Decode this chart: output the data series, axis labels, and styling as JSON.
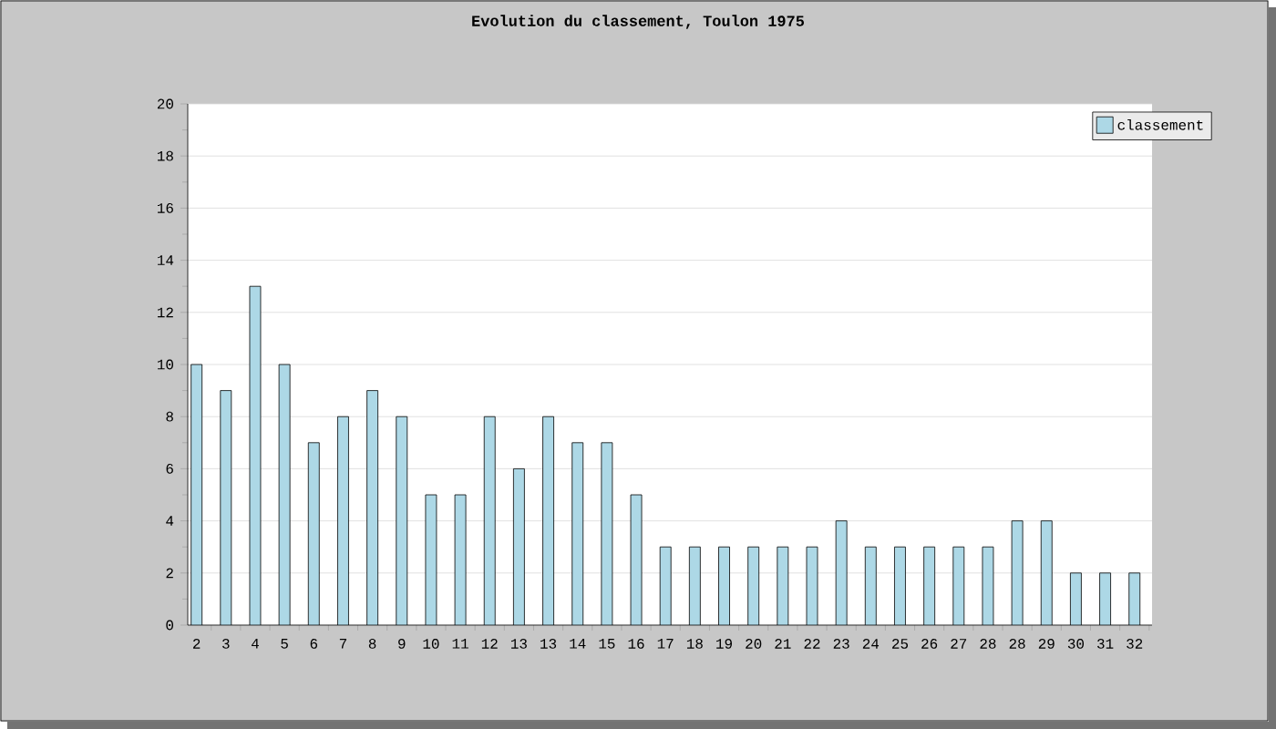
{
  "chart_data": {
    "type": "bar",
    "title": "Evolution du classement, Toulon 1975",
    "categories": [
      "2",
      "3",
      "4",
      "5",
      "6",
      "7",
      "8",
      "9",
      "10",
      "11",
      "12",
      "13",
      "13",
      "14",
      "15",
      "16",
      "17",
      "18",
      "19",
      "20",
      "21",
      "22",
      "23",
      "24",
      "25",
      "26",
      "27",
      "28",
      "28",
      "29",
      "30",
      "31",
      "32"
    ],
    "series": [
      {
        "name": "classement",
        "color": "#add8e6",
        "values": [
          10,
          9,
          13,
          10,
          7,
          8,
          9,
          8,
          5,
          5,
          8,
          6,
          8,
          7,
          7,
          5,
          3,
          3,
          3,
          3,
          3,
          3,
          4,
          3,
          3,
          3,
          3,
          3,
          4,
          4,
          2,
          2,
          2
        ]
      }
    ],
    "ylim": [
      0,
      20
    ],
    "yticks": [
      0,
      2,
      4,
      6,
      8,
      10,
      12,
      14,
      16,
      18,
      20
    ],
    "grid": "y",
    "legend": "top right"
  }
}
